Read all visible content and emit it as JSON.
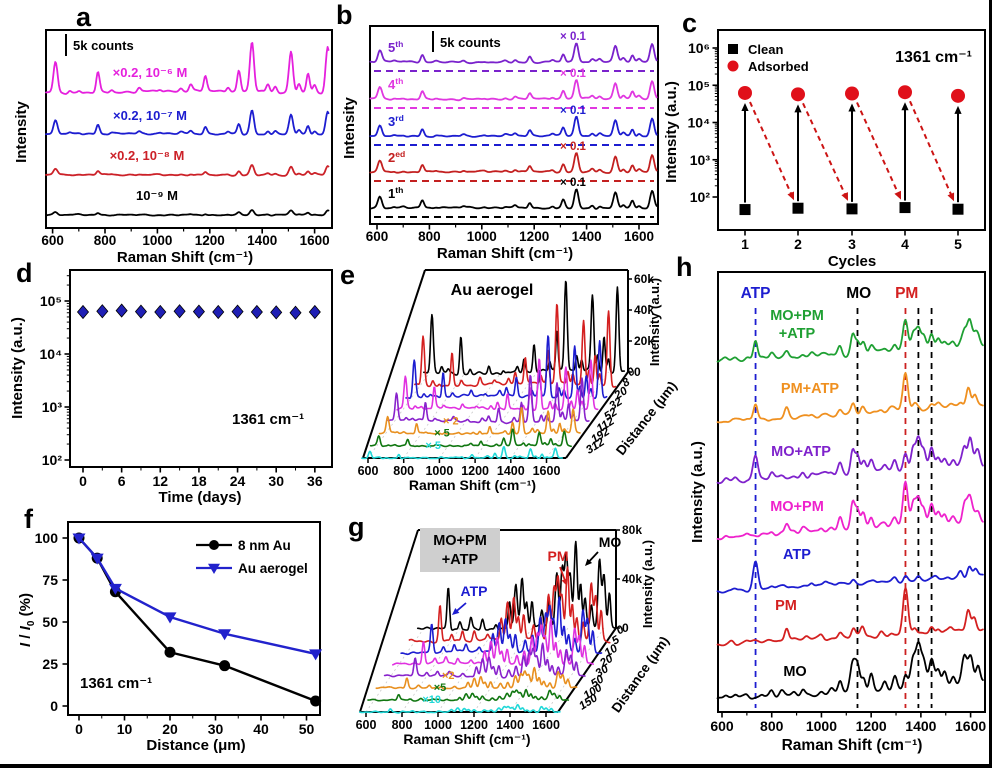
{
  "figure": {
    "background": "#ffffff",
    "border_color": "#000000"
  },
  "chart_data": {
    "peak_libraries": {
      "r6g": [
        [
          611,
          0.62
        ],
        [
          665,
          0.06
        ],
        [
          702,
          0.04
        ],
        [
          773,
          0.4
        ],
        [
          825,
          0.05
        ],
        [
          930,
          0.08
        ],
        [
          1010,
          0.04
        ],
        [
          1090,
          0.06
        ],
        [
          1127,
          0.13
        ],
        [
          1183,
          0.3
        ],
        [
          1270,
          0.1
        ],
        [
          1311,
          0.42
        ],
        [
          1361,
          1.0
        ],
        [
          1422,
          0.16
        ],
        [
          1450,
          0.12
        ],
        [
          1510,
          0.82
        ],
        [
          1540,
          0.18
        ],
        [
          1575,
          0.38
        ],
        [
          1600,
          0.14
        ],
        [
          1650,
          0.92
        ]
      ],
      "mo": [
        [
          615,
          0.07
        ],
        [
          655,
          0.07
        ],
        [
          700,
          0.05
        ],
        [
          760,
          0.06
        ],
        [
          800,
          0.13
        ],
        [
          840,
          0.09
        ],
        [
          890,
          0.06
        ],
        [
          925,
          0.14
        ],
        [
          1000,
          0.06
        ],
        [
          1040,
          0.08
        ],
        [
          1075,
          0.28
        ],
        [
          1125,
          0.6
        ],
        [
          1145,
          0.55
        ],
        [
          1170,
          0.32
        ],
        [
          1200,
          0.36
        ],
        [
          1255,
          0.18
        ],
        [
          1295,
          0.26
        ],
        [
          1338,
          0.32
        ],
        [
          1368,
          0.62
        ],
        [
          1390,
          0.85
        ],
        [
          1412,
          0.52
        ],
        [
          1443,
          0.58
        ],
        [
          1470,
          0.32
        ],
        [
          1495,
          0.28
        ],
        [
          1530,
          0.22
        ],
        [
          1575,
          0.6
        ],
        [
          1600,
          0.58
        ],
        [
          1630,
          0.38
        ]
      ],
      "pm": [
        [
          640,
          0.06
        ],
        [
          700,
          0.04
        ],
        [
          860,
          0.3
        ],
        [
          940,
          0.05
        ],
        [
          1000,
          0.08
        ],
        [
          1075,
          0.12
        ],
        [
          1128,
          0.2
        ],
        [
          1165,
          0.22
        ],
        [
          1240,
          0.09
        ],
        [
          1280,
          0.07
        ],
        [
          1338,
          1.0
        ],
        [
          1375,
          0.15
        ],
        [
          1443,
          0.13
        ],
        [
          1470,
          0.11
        ],
        [
          1520,
          0.08
        ],
        [
          1590,
          0.42
        ],
        [
          1615,
          0.26
        ]
      ],
      "atp": [
        [
          650,
          0.08
        ],
        [
          735,
          1.0
        ],
        [
          800,
          0.1
        ],
        [
          850,
          0.06
        ],
        [
          960,
          0.15
        ],
        [
          1015,
          0.1
        ],
        [
          1070,
          0.06
        ],
        [
          1128,
          0.16
        ],
        [
          1210,
          0.08
        ],
        [
          1295,
          0.13
        ],
        [
          1338,
          0.2
        ],
        [
          1390,
          0.13
        ],
        [
          1460,
          0.09
        ],
        [
          1510,
          0.08
        ],
        [
          1560,
          0.26
        ],
        [
          1595,
          0.38
        ],
        [
          1620,
          0.28
        ]
      ],
      "mix": [
        [
          735,
          0.5
        ],
        [
          800,
          0.1
        ],
        [
          860,
          0.14
        ],
        [
          925,
          0.12
        ],
        [
          1000,
          0.07
        ],
        [
          1075,
          0.3
        ],
        [
          1110,
          0.52
        ],
        [
          1145,
          0.58
        ],
        [
          1170,
          0.3
        ],
        [
          1200,
          0.32
        ],
        [
          1255,
          0.2
        ],
        [
          1295,
          0.3
        ],
        [
          1338,
          0.62
        ],
        [
          1368,
          0.7
        ],
        [
          1390,
          0.82
        ],
        [
          1412,
          0.6
        ],
        [
          1443,
          1.0
        ],
        [
          1470,
          0.5
        ],
        [
          1495,
          0.32
        ],
        [
          1530,
          0.26
        ],
        [
          1575,
          0.8
        ],
        [
          1600,
          0.62
        ],
        [
          1630,
          0.42
        ]
      ]
    },
    "panel_a": {
      "letter": "a",
      "type": "spectra",
      "scalebar_label": "5k counts",
      "ylabel": "Intensity",
      "xlabel": "Raman Shift (cm⁻¹)",
      "xticks": [
        600,
        800,
        1000,
        1200,
        1400,
        1600
      ],
      "series": [
        {
          "label": "×0.2, 10⁻⁶ M",
          "color": "#e520dd",
          "baseline": 92,
          "amp": 50
        },
        {
          "label": "×0.2, 10⁻⁷ M",
          "color": "#1d1dd0",
          "baseline": 134,
          "amp": 24
        },
        {
          "label": "×0.2, 10⁻⁸ M",
          "color": "#cc2128",
          "baseline": 175,
          "amp": 10
        },
        {
          "label": "10⁻⁹ M",
          "color": "#000000",
          "baseline": 215,
          "amp": 5
        }
      ]
    },
    "panel_b": {
      "letter": "b",
      "type": "spectra",
      "scalebar_label": "5k counts",
      "ylabel": "Intensity",
      "xlabel": "Raman Shift (cm⁻¹)",
      "xticks": [
        600,
        800,
        1000,
        1200,
        1400,
        1600
      ],
      "series": [
        {
          "label_base": "5",
          "label_sup": "th",
          "mult": "× 0.1",
          "color": "#7a22cc",
          "baseline": 62,
          "amp": 19
        },
        {
          "label_base": "4",
          "label_sup": "th",
          "mult": "× 0.1",
          "color": "#e038e0",
          "baseline": 99,
          "amp": 19
        },
        {
          "label_base": "3",
          "label_sup": "rd",
          "mult": "× 0.1",
          "color": "#1d1dd0",
          "baseline": 136,
          "amp": 19
        },
        {
          "label_base": "2",
          "label_sup": "ed",
          "mult": "× 0.1",
          "color": "#c32020",
          "baseline": 172,
          "amp": 19
        },
        {
          "label_base": "1",
          "label_sup": "th",
          "mult": "× 0.1",
          "color": "#000000",
          "baseline": 208,
          "amp": 19
        }
      ]
    },
    "panel_c": {
      "letter": "c",
      "type": "scatter",
      "ylabel": "Intensity (a.u.)",
      "xlabel": "Cycles",
      "annotation": "1361 cm⁻¹",
      "xticks": [
        1,
        2,
        3,
        4,
        5
      ],
      "ytick_labels": [
        "10²",
        "10³",
        "10⁴",
        "10⁵",
        "10⁶"
      ],
      "legend": [
        {
          "label": "Clean",
          "marker": "square",
          "color": "#000000"
        },
        {
          "label": "Adsorbed",
          "marker": "circle",
          "color": "#e0101a"
        }
      ],
      "clean_values": [
        46,
        50,
        48,
        52,
        47
      ],
      "adsorbed_values": [
        62000,
        57000,
        60000,
        65000,
        52000
      ]
    },
    "panel_d": {
      "letter": "d",
      "type": "scatter",
      "ylabel": "Intensity (a.u.)",
      "xlabel": "Time (days)",
      "annotation": "1361 cm⁻¹",
      "xticks": [
        0,
        6,
        12,
        18,
        24,
        30,
        36
      ],
      "ytick_labels": [
        "10²",
        "10³",
        "10⁴",
        "10⁵"
      ],
      "days": [
        0,
        3,
        6,
        9,
        12,
        15,
        18,
        21,
        24,
        27,
        30,
        33,
        36
      ],
      "values": [
        62000,
        64000,
        66000,
        63000,
        62000,
        64000,
        63000,
        62000,
        63000,
        62000,
        61000,
        60000,
        62000
      ],
      "marker_color": "#1f1fb4"
    },
    "panel_e": {
      "letter": "e",
      "type": "waterfall3d",
      "title": "Au aerogel",
      "zlabel": "Intensity (a.u.)",
      "xlabel": "Raman Shift (cm⁻¹)",
      "depth_label": "Distance (μm)",
      "zticks": [
        "0",
        "20k",
        "40k",
        "60k"
      ],
      "xticks": [
        600,
        800,
        1000,
        1200,
        1400,
        1600
      ],
      "peaks": "r6g",
      "series": [
        {
          "distance": "0",
          "color": "#000000",
          "amp": 92,
          "mult": ""
        },
        {
          "distance": "8",
          "color": "#d42020",
          "amp": 80,
          "mult": ""
        },
        {
          "distance": "20",
          "color": "#1d1dd0",
          "amp": 62,
          "mult": ""
        },
        {
          "distance": "32",
          "color": "#e032e0",
          "amp": 52,
          "mult": ""
        },
        {
          "distance": "52",
          "color": "#8822cc",
          "amp": 46,
          "mult": ""
        },
        {
          "distance": "112",
          "color": "#e89020",
          "amp": 26,
          "mult": "× 2"
        },
        {
          "distance": "192",
          "color": "#117711",
          "amp": 16,
          "mult": "× 5"
        },
        {
          "distance": "312",
          "color": "#22d8d8",
          "amp": 11,
          "mult": "× 5"
        }
      ]
    },
    "panel_f": {
      "letter": "f",
      "type": "line",
      "ylabel_parts": {
        "pre": "I",
        "mid": " / ",
        "i2": "I",
        "sub": "0",
        "post": " (%)"
      },
      "xlabel": "Distance (μm)",
      "annotation": "1361 cm⁻¹",
      "xticks": [
        0,
        10,
        20,
        30,
        40,
        50
      ],
      "yticks": [
        0,
        25,
        50,
        75,
        100
      ],
      "series": [
        {
          "name": "8 nm Au",
          "color": "#000000",
          "marker": "circle",
          "x": [
            0,
            4,
            8,
            20,
            32,
            52
          ],
          "y": [
            100,
            88,
            68,
            32,
            24,
            3
          ]
        },
        {
          "name": "Au aerogel",
          "color": "#2222cc",
          "marker": "triangle-down",
          "x": [
            0,
            4,
            8,
            20,
            32,
            52
          ],
          "y": [
            100,
            88,
            70,
            53,
            43,
            31
          ]
        }
      ]
    },
    "panel_g": {
      "letter": "g",
      "type": "waterfall3d",
      "title_line1": "MO+PM",
      "title_line2": "+ATP",
      "title_box_color": "#cfcfcf",
      "zlabel": "Intensity (a.u.)",
      "xlabel": "Raman Shift (cm⁻¹)",
      "depth_label": "Distance (μm)",
      "zticks": [
        "0",
        "40k",
        "80k"
      ],
      "xticks": [
        600,
        800,
        1000,
        1200,
        1400,
        1600
      ],
      "peaks": "mix",
      "annotations": [
        {
          "text": "ATP",
          "color": "#1d1dd0"
        },
        {
          "text": "PM",
          "color": "#d42020"
        },
        {
          "text": "MO",
          "color": "#000000"
        }
      ],
      "series": [
        {
          "distance": "0",
          "color": "#000000",
          "amp": 85,
          "mult": ""
        },
        {
          "distance": "5",
          "color": "#d42020",
          "amp": 72,
          "mult": ""
        },
        {
          "distance": "10",
          "color": "#1d1dd0",
          "amp": 55,
          "mult": ""
        },
        {
          "distance": "20",
          "color": "#e032e0",
          "amp": 45,
          "mult": ""
        },
        {
          "distance": "30",
          "color": "#8822cc",
          "amp": 33,
          "mult": ""
        },
        {
          "distance": "50",
          "color": "#e89020",
          "amp": 20,
          "mult": "×2"
        },
        {
          "distance": "100",
          "color": "#117711",
          "amp": 11,
          "mult": "×5"
        },
        {
          "distance": "150",
          "color": "#22d8d8",
          "amp": 7,
          "mult": "×10"
        }
      ]
    },
    "panel_h": {
      "letter": "h",
      "type": "spectra",
      "ylabel": "Intensity (a.u.)",
      "xlabel": "Raman Shift (cm⁻¹)",
      "xticks": [
        600,
        800,
        1000,
        1200,
        1400,
        1600
      ],
      "headers": [
        {
          "text": "ATP",
          "color": "#1d1dd0",
          "cm": 735
        },
        {
          "text": "MO",
          "color": "#000000",
          "cm": 1150
        },
        {
          "text": "PM",
          "color": "#d42020",
          "cm": 1343
        }
      ],
      "dashed_lines": [
        {
          "cm": 735,
          "color": "#1d1dd0"
        },
        {
          "cm": 1145,
          "color": "#000000"
        },
        {
          "cm": 1338,
          "color": "#cc2020"
        },
        {
          "cm": 1390,
          "color": "#000000"
        },
        {
          "cm": 1443,
          "color": "#000000"
        }
      ],
      "series": [
        {
          "label_lines": [
            "MO+PM",
            "+ATP"
          ],
          "color": "#1fa033",
          "baseline": 362,
          "amp": 40,
          "components": {
            "mo": 0.55,
            "pm": 0.5,
            "atp": 0.5
          }
        },
        {
          "label_lines": [
            "PM+ATP"
          ],
          "color": "#ef9020",
          "baseline": 422,
          "amp": 40,
          "components": {
            "pm": 0.85,
            "atp": 0.4
          }
        },
        {
          "label_lines": [
            "MO+ATP"
          ],
          "color": "#7f22cc",
          "baseline": 482,
          "amp": 42,
          "components": {
            "mo": 0.8,
            "atp": 0.6
          }
        },
        {
          "label_lines": [
            "MO+PM"
          ],
          "color": "#ee22cc",
          "baseline": 538,
          "amp": 42,
          "components": {
            "mo": 0.75,
            "pm": 0.8
          }
        },
        {
          "label_lines": [
            "ATP"
          ],
          "color": "#1d1dd0",
          "baseline": 592,
          "amp": 28,
          "components": {
            "atp": 1
          }
        },
        {
          "label_lines": [
            "PM"
          ],
          "color": "#d42020",
          "baseline": 645,
          "amp": 45,
          "components": {
            "pm": 1
          }
        },
        {
          "label_lines": [
            "MO"
          ],
          "color": "#000000",
          "baseline": 700,
          "amp": 48,
          "components": {
            "mo": 1
          }
        }
      ]
    }
  }
}
